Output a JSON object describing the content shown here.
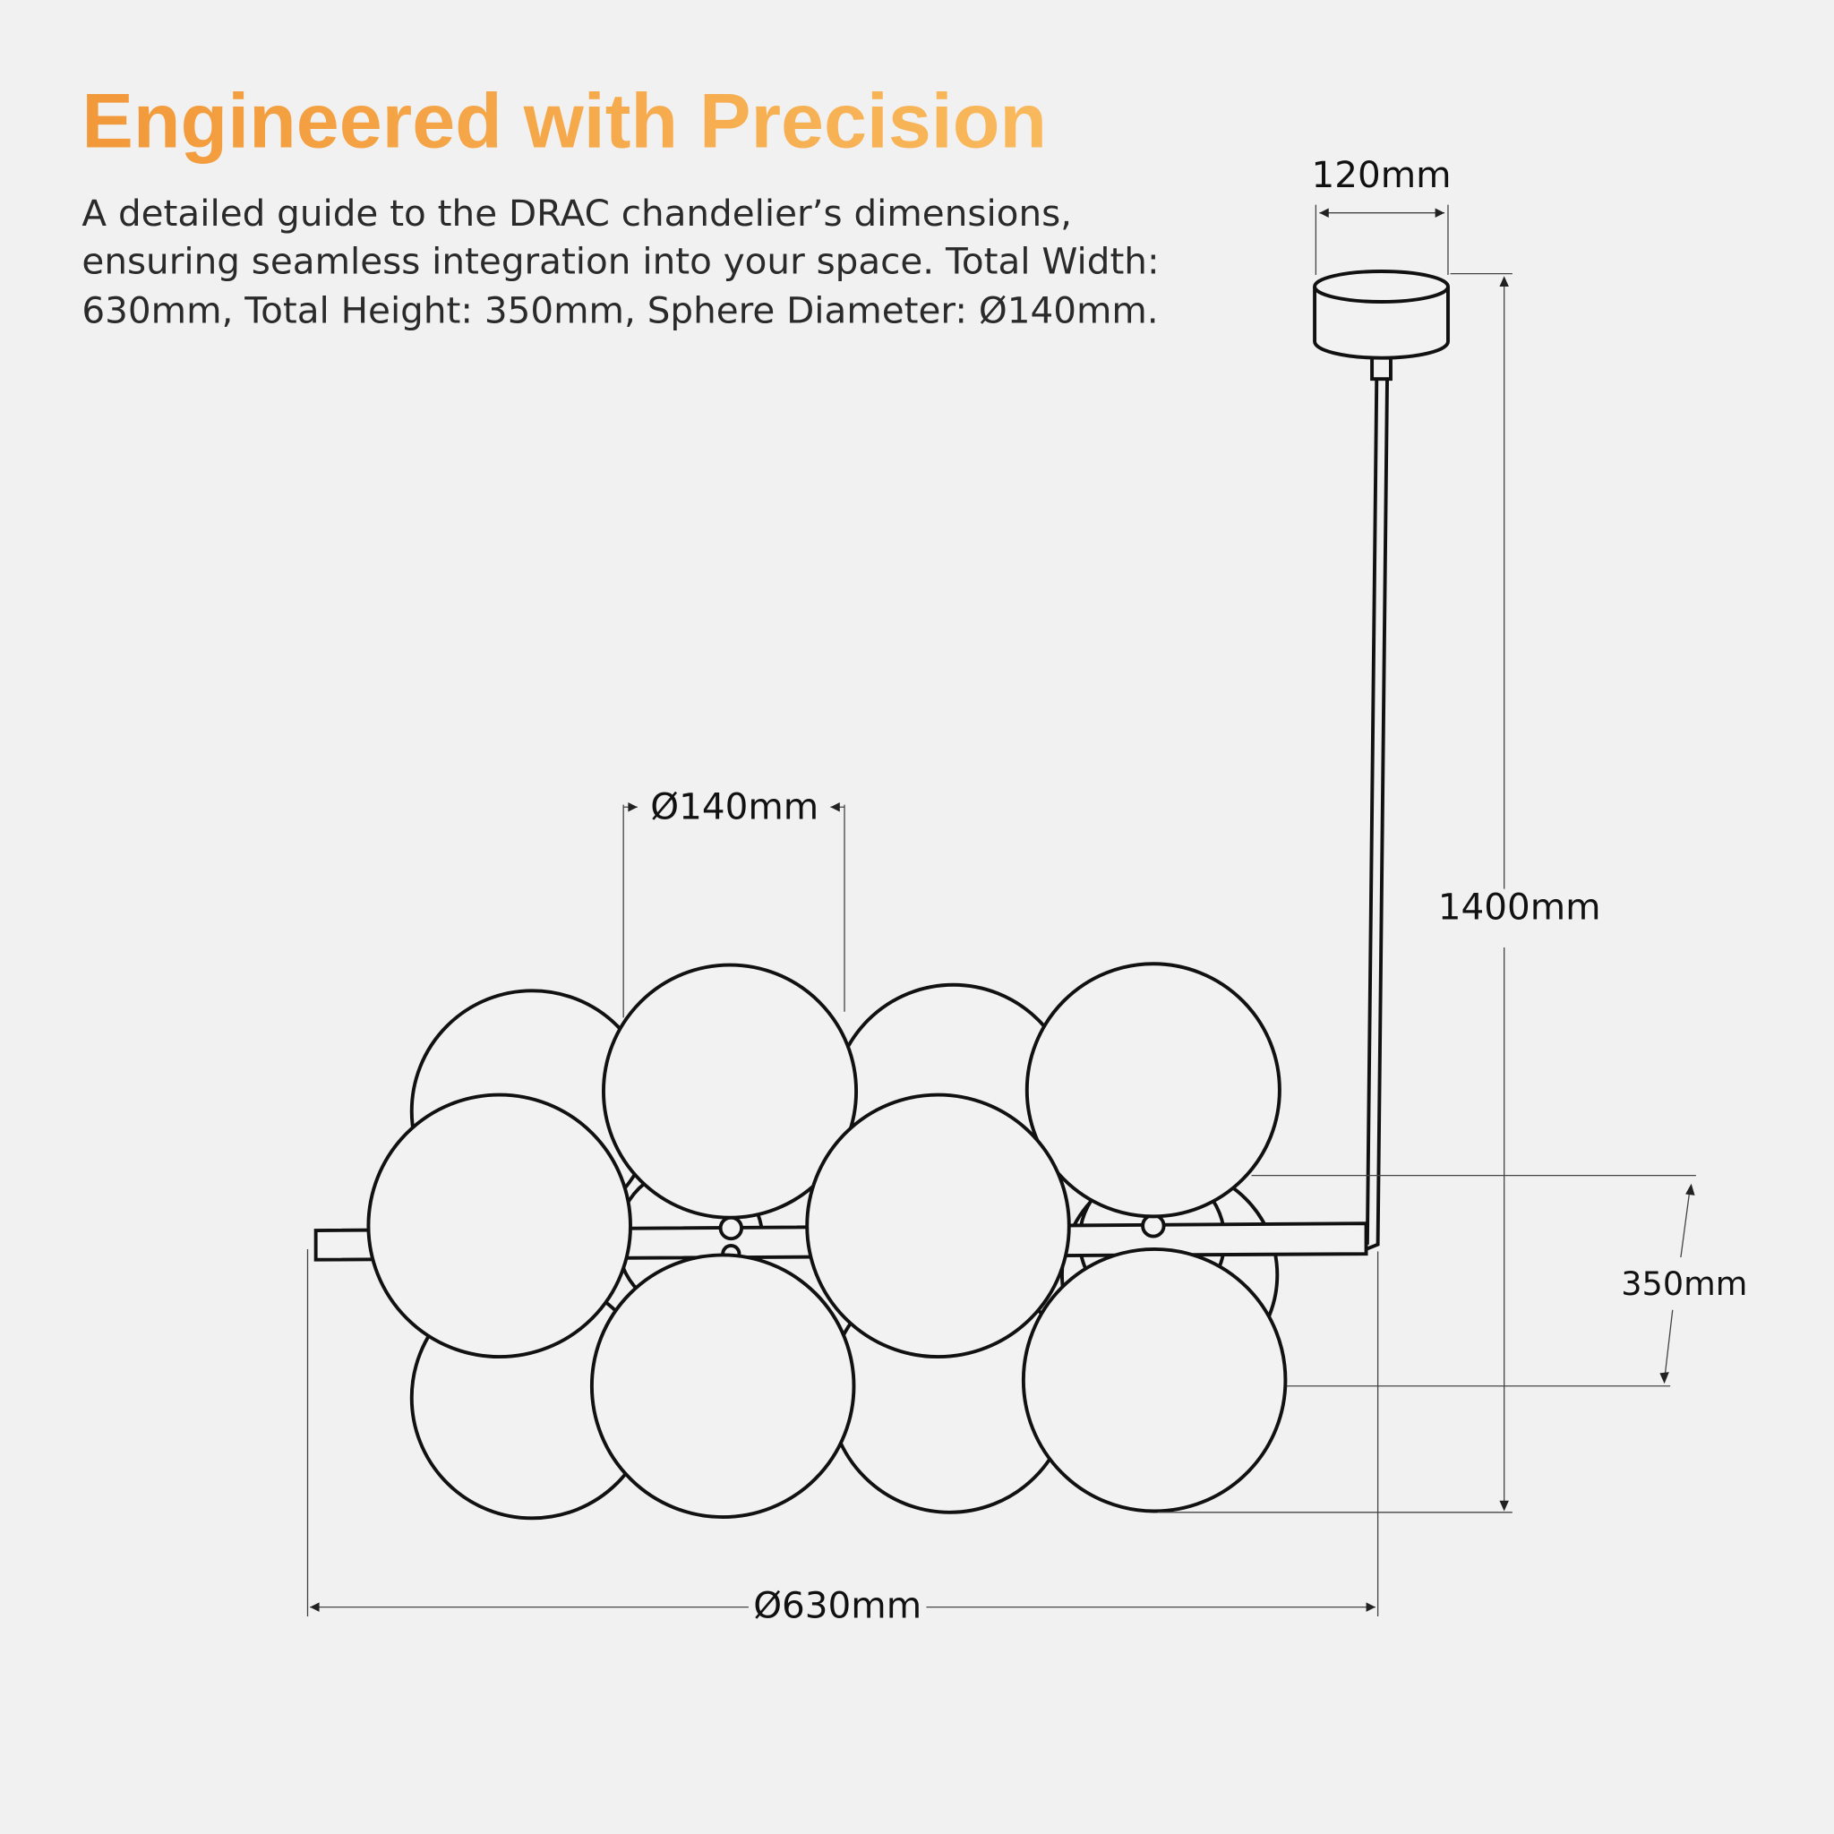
{
  "header": {
    "title": "Engineered with Precision",
    "description": [
      "A detailed guide to the DRAC chandelier’s dimensions,",
      "ensuring seamless integration into your space. Total Width:",
      "630mm, Total Height: 350mm, Sphere Diameter: Ø140mm."
    ]
  },
  "dimensions": {
    "canopy_width": "120mm",
    "drop_height": "1400mm",
    "sphere_diameter": "Ø140mm",
    "body_height": "350mm",
    "total_width": "Ø630mm"
  }
}
